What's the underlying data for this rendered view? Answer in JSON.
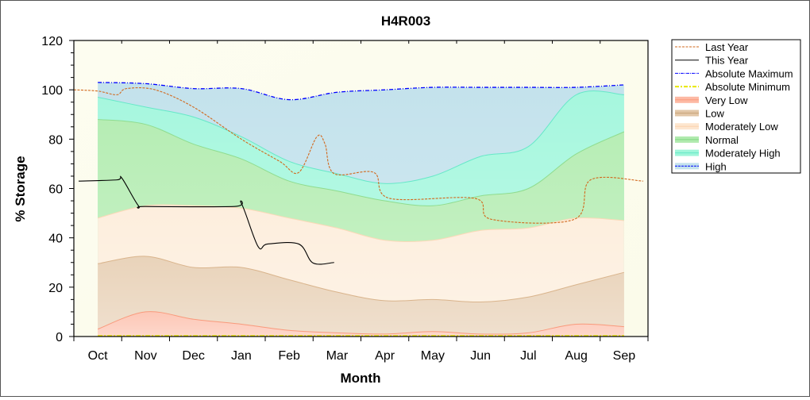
{
  "chart_data": {
    "type": "area",
    "title": "H4R003",
    "xlabel": "Month",
    "ylabel": "% Storage",
    "ylim": [
      0,
      120
    ],
    "yticks": [
      0,
      20,
      40,
      60,
      80,
      100,
      120
    ],
    "xlim": [
      0,
      12
    ],
    "x_unit": "months since start of October",
    "categories": [
      "Oct",
      "Nov",
      "Dec",
      "Jan",
      "Feb",
      "Mar",
      "Apr",
      "May",
      "Jun",
      "Jul",
      "Aug",
      "Sep"
    ],
    "legend_position": "right",
    "band_x": [
      0.5,
      1.5,
      2.5,
      3.5,
      4.5,
      5.5,
      6.5,
      7.5,
      8.5,
      9.5,
      10.5,
      11.5
    ],
    "bands": [
      {
        "name": "High",
        "fill": "#c3e2ec",
        "stroke": "#0000ff",
        "values": [
          103,
          102.5,
          100.5,
          100.5,
          96,
          99,
          100,
          101,
          101,
          101,
          101,
          102
        ]
      },
      {
        "name": "Moderately High",
        "fill": "#a6f7de",
        "stroke": "#66e8c8",
        "values": [
          97,
          93,
          89,
          81,
          71,
          66,
          62,
          65,
          73,
          77,
          98,
          98
        ]
      },
      {
        "name": "Normal",
        "fill": "#b6edb4",
        "stroke": "#8fdc8f",
        "values": [
          88,
          86,
          78,
          72,
          63,
          59,
          55,
          53,
          57,
          60,
          74,
          83
        ]
      },
      {
        "name": "Moderately Low",
        "fill": "#fdeedd",
        "stroke": "#fbd9b8",
        "values": [
          48,
          53,
          53,
          52,
          48,
          44,
          39,
          39,
          43,
          44,
          48,
          47
        ]
      },
      {
        "name": "Low",
        "fill": "#e9d3ba",
        "stroke": "#d9b48c",
        "values": [
          29.5,
          32.5,
          28,
          28,
          23,
          18,
          14.5,
          15,
          14,
          16,
          21,
          26
        ]
      },
      {
        "name": "Very Low",
        "fill": "#fdc7b6",
        "stroke": "#f99a7c",
        "values": [
          3,
          10,
          7,
          5,
          2.5,
          1.5,
          1,
          2,
          1,
          1.5,
          5,
          4
        ]
      }
    ],
    "series": [
      {
        "name": "Last Year",
        "color": "#d2691e",
        "style": "dashed",
        "x": [
          0,
          0.5,
          0.9,
          1.1,
          1.7,
          2.5,
          3.5,
          4.3,
          4.7,
          5.08,
          5.25,
          5.44,
          6.27,
          6.6,
          8.38,
          8.73,
          10.46,
          10.8,
          11.9
        ],
        "y": [
          100,
          99.5,
          98,
          100.5,
          100,
          93,
          80,
          71,
          66.5,
          81,
          78,
          66,
          66.5,
          56,
          56,
          47.5,
          47.5,
          63.5,
          63
        ]
      },
      {
        "name": "This Year",
        "color": "#000000",
        "style": "solid",
        "x": [
          0.1,
          0.9,
          1.0,
          1.35,
          1.5,
          3.35,
          3.5,
          3.85,
          4.05,
          4.7,
          5.0,
          5.44
        ],
        "y": [
          63,
          63.5,
          64.3,
          53,
          52.7,
          52.7,
          54,
          36.5,
          37.5,
          37.5,
          29.8,
          30
        ]
      },
      {
        "name": "Absolute Maximum",
        "color": "#0000ff",
        "style": "dash-dot"
      },
      {
        "name": "Absolute Minimum",
        "color": "#e8e800",
        "style": "dash-dot",
        "values": [
          0,
          0,
          0,
          0,
          0,
          0,
          0,
          0,
          0,
          0,
          0,
          0
        ]
      }
    ],
    "legend": [
      "Last Year",
      "This Year",
      "Absolute Maximum",
      "Absolute Minimum",
      "Very Low",
      "Low",
      "Moderately Low",
      "Normal",
      "Moderately High",
      "High"
    ]
  }
}
